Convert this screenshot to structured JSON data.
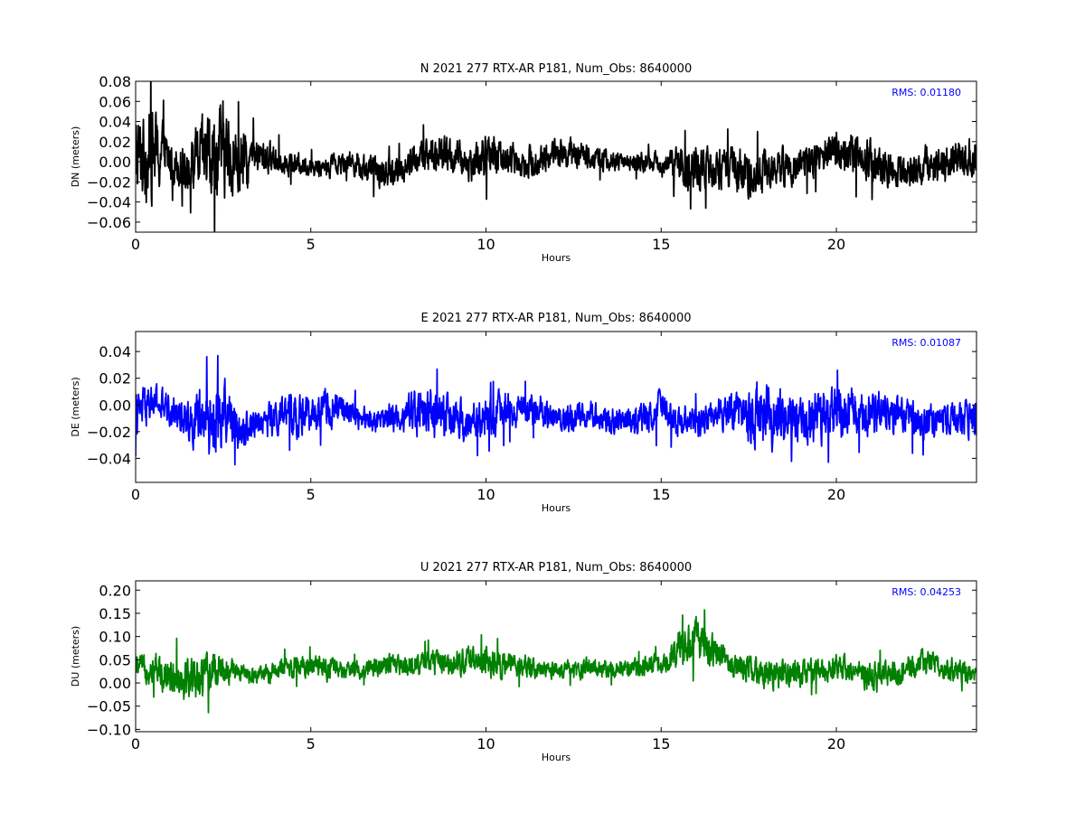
{
  "chart_data": [
    {
      "type": "line",
      "component": "N",
      "title": "N 2021 277 RTX-AR  P181, Num_Obs: 8640000",
      "xlabel": "Hours",
      "ylabel": "DN (meters)",
      "xlim": [
        0,
        24
      ],
      "ylim": [
        -0.07,
        0.08
      ],
      "xticks": [
        0,
        5,
        10,
        15,
        20
      ],
      "xtick_labels": [
        "0",
        "5",
        "10",
        "15",
        "20"
      ],
      "yticks": [
        -0.06,
        -0.04,
        -0.02,
        0.0,
        0.02,
        0.04,
        0.06,
        0.08
      ],
      "ytick_labels": [
        "−0.06",
        "−0.04",
        "−0.02",
        "0.00",
        "0.02",
        "0.04",
        "0.06",
        "0.08"
      ],
      "color": "#000000",
      "annotation": "RMS:  0.01180",
      "annotation_color": "#0000ff",
      "grid": false,
      "series": [
        {
          "x": [
            0,
            0.5,
            1,
            1.5,
            2,
            2.5,
            3,
            3.5,
            4,
            4.5,
            5,
            5.5,
            6,
            6.5,
            7,
            7.5,
            8,
            8.5,
            9,
            9.5,
            10,
            10.5,
            11,
            11.5,
            12,
            12.5,
            13,
            13.5,
            14,
            14.5,
            15,
            15.5,
            16,
            16.5,
            17,
            17.5,
            18,
            18.5,
            19,
            19.5,
            20,
            20.5,
            21,
            21.5,
            22,
            22.5,
            23,
            23.5,
            24
          ],
          "center": [
            0.005,
            0.01,
            0.0,
            -0.005,
            0.005,
            0.01,
            -0.005,
            0.005,
            0.003,
            -0.002,
            -0.005,
            -0.005,
            0.002,
            -0.005,
            -0.012,
            -0.008,
            0.002,
            0.008,
            0.005,
            -0.002,
            0.005,
            0.005,
            0.0,
            0.0,
            0.01,
            0.008,
            0.005,
            0.0,
            0.0,
            0.0,
            -0.002,
            -0.005,
            -0.008,
            -0.005,
            -0.01,
            -0.012,
            -0.008,
            -0.005,
            -0.002,
            0.005,
            0.01,
            0.008,
            0.0,
            -0.008,
            -0.01,
            -0.005,
            0.0,
            0.005,
            0.003
          ],
          "amp": [
            0.045,
            0.05,
            0.022,
            0.025,
            0.045,
            0.05,
            0.035,
            0.02,
            0.015,
            0.012,
            0.01,
            0.012,
            0.012,
            0.015,
            0.015,
            0.015,
            0.018,
            0.02,
            0.02,
            0.018,
            0.025,
            0.02,
            0.015,
            0.018,
            0.015,
            0.015,
            0.012,
            0.012,
            0.01,
            0.01,
            0.012,
            0.02,
            0.025,
            0.022,
            0.025,
            0.025,
            0.022,
            0.02,
            0.018,
            0.02,
            0.022,
            0.025,
            0.022,
            0.02,
            0.018,
            0.02,
            0.022,
            0.022,
            0.02
          ]
        }
      ]
    },
    {
      "type": "line",
      "component": "E",
      "title": "E 2021 277 RTX-AR  P181, Num_Obs: 8640000",
      "xlabel": "Hours",
      "ylabel": "DE (meters)",
      "xlim": [
        0,
        24
      ],
      "ylim": [
        -0.058,
        0.055
      ],
      "xticks": [
        0,
        5,
        10,
        15,
        20
      ],
      "xtick_labels": [
        "0",
        "5",
        "10",
        "15",
        "20"
      ],
      "yticks": [
        -0.04,
        -0.02,
        0.0,
        0.02,
        0.04
      ],
      "ytick_labels": [
        "−0.04",
        "−0.02",
        "0.00",
        "0.02",
        "0.04"
      ],
      "color": "#0000ff",
      "annotation": "RMS:  0.01087",
      "annotation_color": "#0000ff",
      "grid": false,
      "series": [
        {
          "x": [
            0,
            0.5,
            1,
            1.5,
            2,
            2.5,
            3,
            3.5,
            4,
            4.5,
            5,
            5.5,
            6,
            6.5,
            7,
            7.5,
            8,
            8.5,
            9,
            9.5,
            10,
            10.5,
            11,
            11.5,
            12,
            12.5,
            13,
            13.5,
            14,
            14.5,
            15,
            15.5,
            16,
            16.5,
            17,
            17.5,
            18,
            18.5,
            19,
            19.5,
            20,
            20.5,
            21,
            21.5,
            22,
            22.5,
            23,
            23.5,
            24
          ],
          "center": [
            -0.008,
            0.002,
            -0.005,
            -0.01,
            -0.015,
            -0.005,
            -0.018,
            -0.012,
            -0.01,
            -0.008,
            -0.008,
            -0.002,
            -0.005,
            -0.01,
            -0.012,
            -0.008,
            -0.005,
            -0.005,
            -0.012,
            -0.015,
            -0.01,
            -0.005,
            -0.002,
            -0.005,
            -0.01,
            -0.008,
            -0.008,
            -0.01,
            -0.012,
            -0.01,
            -0.005,
            -0.012,
            -0.012,
            -0.008,
            -0.003,
            -0.005,
            -0.008,
            -0.008,
            -0.012,
            -0.01,
            -0.008,
            -0.005,
            -0.005,
            -0.008,
            -0.01,
            -0.012,
            -0.012,
            -0.01,
            -0.012
          ],
          "amp": [
            0.018,
            0.015,
            0.012,
            0.015,
            0.03,
            0.025,
            0.015,
            0.012,
            0.015,
            0.015,
            0.015,
            0.015,
            0.012,
            0.01,
            0.01,
            0.012,
            0.018,
            0.02,
            0.018,
            0.015,
            0.015,
            0.015,
            0.012,
            0.012,
            0.012,
            0.012,
            0.01,
            0.01,
            0.012,
            0.012,
            0.015,
            0.012,
            0.012,
            0.012,
            0.015,
            0.025,
            0.028,
            0.02,
            0.018,
            0.02,
            0.02,
            0.018,
            0.018,
            0.015,
            0.015,
            0.015,
            0.012,
            0.012,
            0.018
          ]
        }
      ]
    },
    {
      "type": "line",
      "component": "U",
      "title": "U 2021 277 RTX-AR  P181, Num_Obs: 8640000",
      "xlabel": "Hours",
      "ylabel": "DU (meters)",
      "xlim": [
        0,
        24
      ],
      "ylim": [
        -0.105,
        0.22
      ],
      "xticks": [
        0,
        5,
        10,
        15,
        20
      ],
      "xtick_labels": [
        "0",
        "5",
        "10",
        "15",
        "20"
      ],
      "yticks": [
        -0.1,
        -0.05,
        0.0,
        0.05,
        0.1,
        0.15,
        0.2
      ],
      "ytick_labels": [
        "−0.10",
        "−0.05",
        "0.00",
        "0.05",
        "0.10",
        "0.15",
        "0.20"
      ],
      "color": "#008000",
      "annotation": "RMS:  0.04253",
      "annotation_color": "#0000ff",
      "grid": false,
      "series": [
        {
          "x": [
            0,
            0.5,
            1,
            1.5,
            2,
            2.5,
            3,
            3.5,
            4,
            4.5,
            5,
            5.5,
            6,
            6.5,
            7,
            7.5,
            8,
            8.5,
            9,
            9.5,
            10,
            10.5,
            11,
            11.5,
            12,
            12.5,
            13,
            13.5,
            14,
            14.5,
            15,
            15.5,
            16,
            16.5,
            17,
            17.5,
            18,
            18.5,
            19,
            19.5,
            20,
            20.5,
            21,
            21.5,
            22,
            22.5,
            23,
            23.5,
            24
          ],
          "center": [
            0.035,
            0.03,
            0.02,
            0.01,
            0.015,
            0.03,
            0.02,
            0.015,
            0.025,
            0.035,
            0.035,
            0.03,
            0.025,
            0.03,
            0.04,
            0.035,
            0.04,
            0.045,
            0.045,
            0.05,
            0.045,
            0.04,
            0.035,
            0.03,
            0.025,
            0.03,
            0.035,
            0.03,
            0.03,
            0.035,
            0.04,
            0.07,
            0.09,
            0.07,
            0.04,
            0.03,
            0.02,
            0.015,
            0.02,
            0.03,
            0.035,
            0.03,
            0.01,
            0.02,
            0.03,
            0.045,
            0.035,
            0.025,
            0.02
          ],
          "amp": [
            0.025,
            0.035,
            0.045,
            0.05,
            0.05,
            0.035,
            0.02,
            0.02,
            0.025,
            0.025,
            0.025,
            0.025,
            0.02,
            0.02,
            0.025,
            0.025,
            0.025,
            0.03,
            0.03,
            0.03,
            0.035,
            0.03,
            0.025,
            0.02,
            0.02,
            0.02,
            0.025,
            0.02,
            0.02,
            0.02,
            0.025,
            0.04,
            0.05,
            0.04,
            0.025,
            0.03,
            0.035,
            0.035,
            0.03,
            0.03,
            0.03,
            0.03,
            0.035,
            0.03,
            0.03,
            0.03,
            0.025,
            0.025,
            0.02
          ]
        }
      ]
    }
  ]
}
